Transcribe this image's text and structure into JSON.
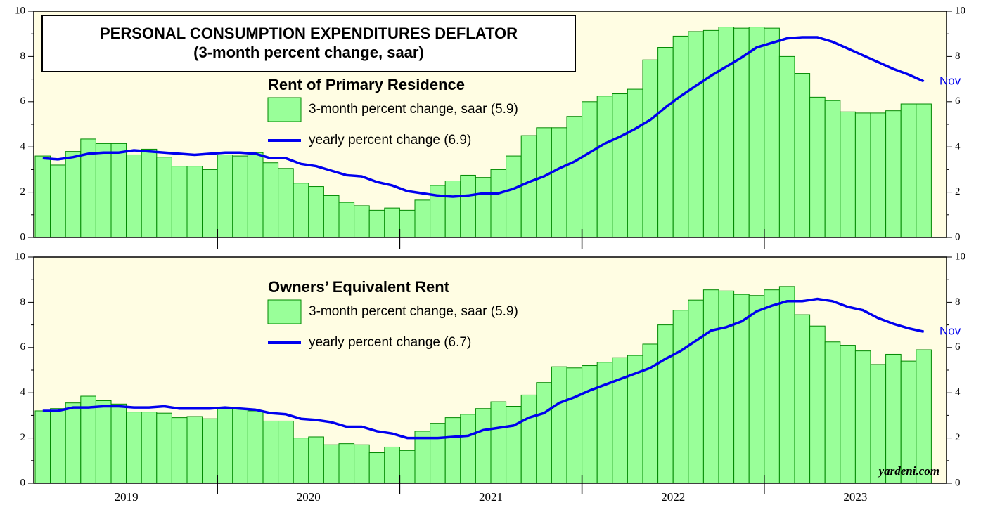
{
  "title": "PERSONAL CONSUMPTION EXPENDITURES DEFLATOR",
  "subtitle": "(3-month percent change, saar)",
  "source": "yardeni.com",
  "x_labels": [
    "2019",
    "2020",
    "2021",
    "2022",
    "2023"
  ],
  "chart_data": [
    {
      "type": "bar",
      "title": "Rent of Primary Residence",
      "end_label": "Nov",
      "ylim": [
        0,
        10
      ],
      "yticks": [
        0,
        2,
        4,
        6,
        8,
        10
      ],
      "series": [
        {
          "name": "3-month percent change, saar (5.9)",
          "type": "bar",
          "color": "#99ff99",
          "values": [
            3.6,
            3.2,
            3.8,
            4.35,
            4.15,
            4.15,
            3.65,
            3.9,
            3.55,
            3.15,
            3.15,
            3.0,
            3.65,
            3.6,
            3.75,
            3.3,
            3.05,
            2.4,
            2.25,
            1.85,
            1.55,
            1.4,
            1.2,
            1.3,
            1.2,
            1.65,
            2.3,
            2.5,
            2.75,
            2.65,
            3.0,
            3.6,
            4.5,
            4.85,
            4.85,
            5.35,
            6.0,
            6.25,
            6.35,
            6.55,
            7.85,
            8.4,
            8.9,
            9.1,
            9.15,
            9.3,
            9.25,
            9.3,
            9.25,
            8.0,
            7.25,
            6.2,
            6.05,
            5.55,
            5.5,
            5.5,
            5.6,
            5.9,
            5.9
          ]
        },
        {
          "name": "yearly percent change (6.9)",
          "type": "line",
          "color": "#0000ee",
          "values": [
            3.5,
            3.45,
            3.55,
            3.7,
            3.75,
            3.75,
            3.85,
            3.8,
            3.75,
            3.7,
            3.65,
            3.7,
            3.75,
            3.75,
            3.7,
            3.5,
            3.5,
            3.25,
            3.15,
            2.95,
            2.75,
            2.7,
            2.45,
            2.3,
            2.05,
            1.95,
            1.85,
            1.8,
            1.85,
            1.95,
            1.95,
            2.15,
            2.45,
            2.7,
            3.05,
            3.35,
            3.75,
            4.15,
            4.45,
            4.8,
            5.2,
            5.75,
            6.25,
            6.7,
            7.15,
            7.55,
            7.95,
            8.4,
            8.6,
            8.8,
            8.85,
            8.85,
            8.65,
            8.35,
            8.05,
            7.75,
            7.45,
            7.2,
            6.9
          ]
        }
      ]
    },
    {
      "type": "bar",
      "title": "Owners’ Equivalent Rent",
      "end_label": "Nov",
      "ylim": [
        0,
        10
      ],
      "yticks": [
        0,
        2,
        4,
        6,
        8,
        10
      ],
      "series": [
        {
          "name": "3-month percent change, saar (5.9)",
          "type": "bar",
          "color": "#99ff99",
          "values": [
            3.2,
            3.3,
            3.55,
            3.85,
            3.65,
            3.5,
            3.15,
            3.15,
            3.1,
            2.9,
            2.95,
            2.85,
            3.3,
            3.3,
            3.2,
            2.75,
            2.75,
            2.0,
            2.05,
            1.7,
            1.75,
            1.7,
            1.35,
            1.6,
            1.45,
            2.3,
            2.65,
            2.9,
            3.05,
            3.3,
            3.6,
            3.4,
            3.9,
            4.45,
            5.15,
            5.1,
            5.2,
            5.35,
            5.55,
            5.65,
            6.15,
            7.0,
            7.65,
            8.1,
            8.55,
            8.5,
            8.35,
            8.3,
            8.55,
            8.7,
            7.45,
            6.95,
            6.25,
            6.1,
            5.85,
            5.25,
            5.7,
            5.4,
            5.9
          ]
        },
        {
          "name": "yearly percent change (6.7)",
          "type": "line",
          "color": "#0000ee",
          "values": [
            3.2,
            3.2,
            3.35,
            3.35,
            3.4,
            3.4,
            3.35,
            3.35,
            3.4,
            3.3,
            3.3,
            3.3,
            3.35,
            3.3,
            3.25,
            3.1,
            3.05,
            2.85,
            2.8,
            2.7,
            2.5,
            2.5,
            2.3,
            2.2,
            2.0,
            2.0,
            2.0,
            2.05,
            2.1,
            2.35,
            2.45,
            2.55,
            2.9,
            3.1,
            3.55,
            3.8,
            4.1,
            4.35,
            4.6,
            4.85,
            5.1,
            5.5,
            5.85,
            6.3,
            6.75,
            6.9,
            7.15,
            7.6,
            7.85,
            8.05,
            8.05,
            8.15,
            8.05,
            7.8,
            7.65,
            7.3,
            7.05,
            6.85,
            6.7
          ]
        }
      ]
    }
  ]
}
